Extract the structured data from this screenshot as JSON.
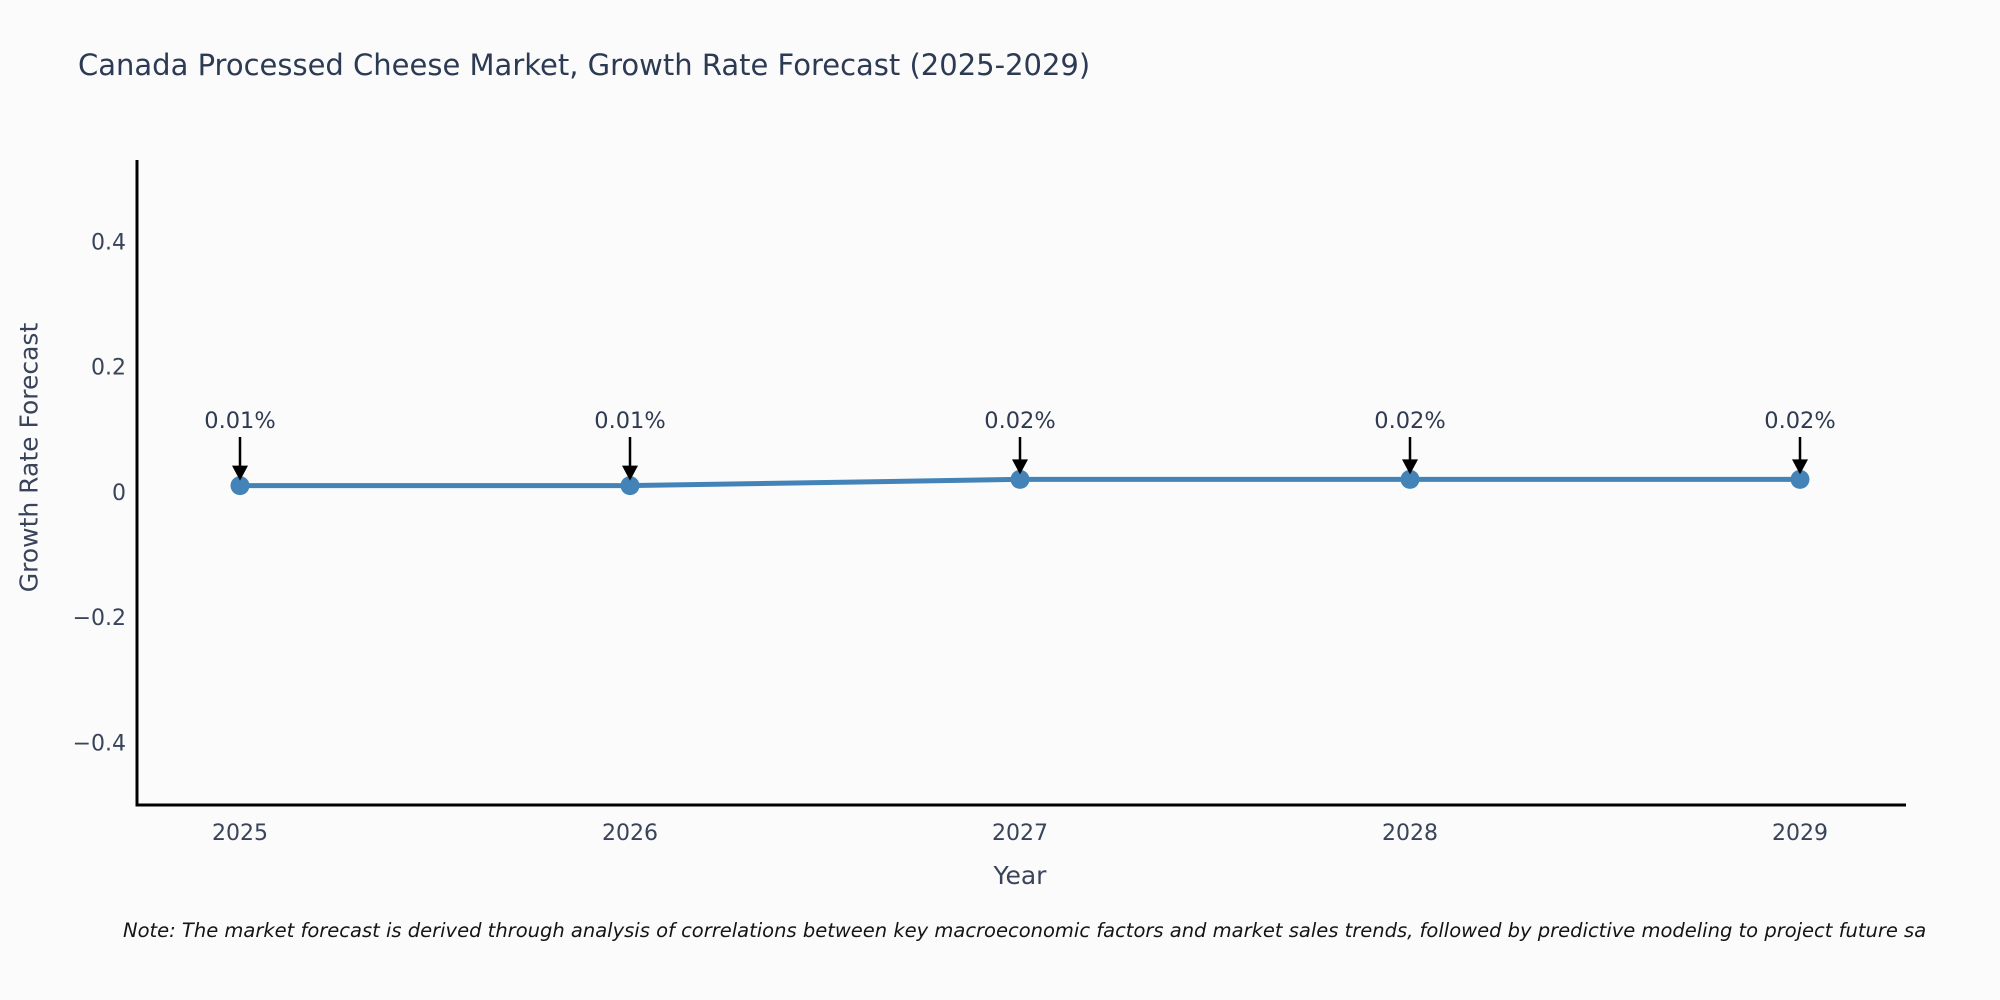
{
  "chart": {
    "title": "Canada Processed Cheese Market, Growth Rate Forecast (2025-2029)",
    "xlabel": "Year",
    "ylabel": "Growth Rate Forecast"
  },
  "note": "Note: The market forecast is derived through analysis of correlations between key macroeconomic factors and market sales trends, followed by predictive modeling to project future sa",
  "chart_data": {
    "type": "line",
    "title": "Canada Processed Cheese Market, Growth Rate Forecast (2025-2029)",
    "xlabel": "Year",
    "ylabel": "Growth Rate Forecast",
    "x": [
      2025,
      2026,
      2027,
      2028,
      2029
    ],
    "values": [
      0.01,
      0.01,
      0.02,
      0.02,
      0.02
    ],
    "point_labels": [
      "0.01%",
      "0.01%",
      "0.02%",
      "0.02%",
      "0.02%"
    ],
    "yticks": [
      0.4,
      0.2,
      0,
      -0.2,
      -0.4
    ],
    "ylim": [
      -0.5,
      0.53
    ],
    "grid": false,
    "legend": false,
    "annotations_have_arrows": true,
    "colors": {
      "line": "#4383b7",
      "marker": "#4383b7",
      "axis": "#000000",
      "arrow": "#000000",
      "tick_text": "#39435a",
      "annotation_text": "#2f3a50"
    }
  }
}
